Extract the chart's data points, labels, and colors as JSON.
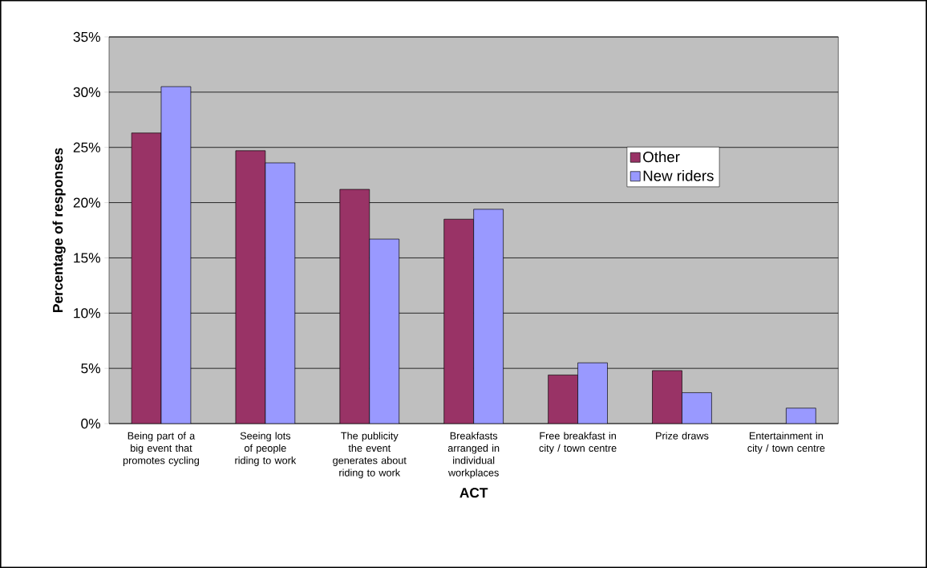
{
  "chart_data": {
    "type": "bar",
    "xlabel": "ACT",
    "ylabel": "Percentage of responses",
    "categories": [
      "Being part of a big event that promotes cycling",
      "Seeing lots of people riding to work",
      "The publicity the event generates about riding to work",
      "Breakfasts arranged in individual workplaces",
      "Free breakfast in city / town centre",
      "Prize draws",
      "Entertainment in city / town centre"
    ],
    "series": [
      {
        "name": "Other",
        "color": "#993366",
        "values": [
          26.3,
          24.7,
          21.2,
          18.5,
          4.4,
          4.8,
          null
        ]
      },
      {
        "name": "New riders",
        "color": "#9999ff",
        "values": [
          30.5,
          23.6,
          16.7,
          19.4,
          5.5,
          2.8,
          1.4
        ]
      }
    ],
    "ylim": [
      0,
      35
    ],
    "yticks": [
      {
        "value": 0,
        "label": "0%"
      },
      {
        "value": 5,
        "label": "5%"
      },
      {
        "value": 10,
        "label": "10%"
      },
      {
        "value": 15,
        "label": "15%"
      },
      {
        "value": 20,
        "label": "20%"
      },
      {
        "value": 25,
        "label": "25%"
      },
      {
        "value": 30,
        "label": "30%"
      },
      {
        "value": 35,
        "label": "35%"
      }
    ],
    "grid": "y",
    "legend": "top right"
  }
}
